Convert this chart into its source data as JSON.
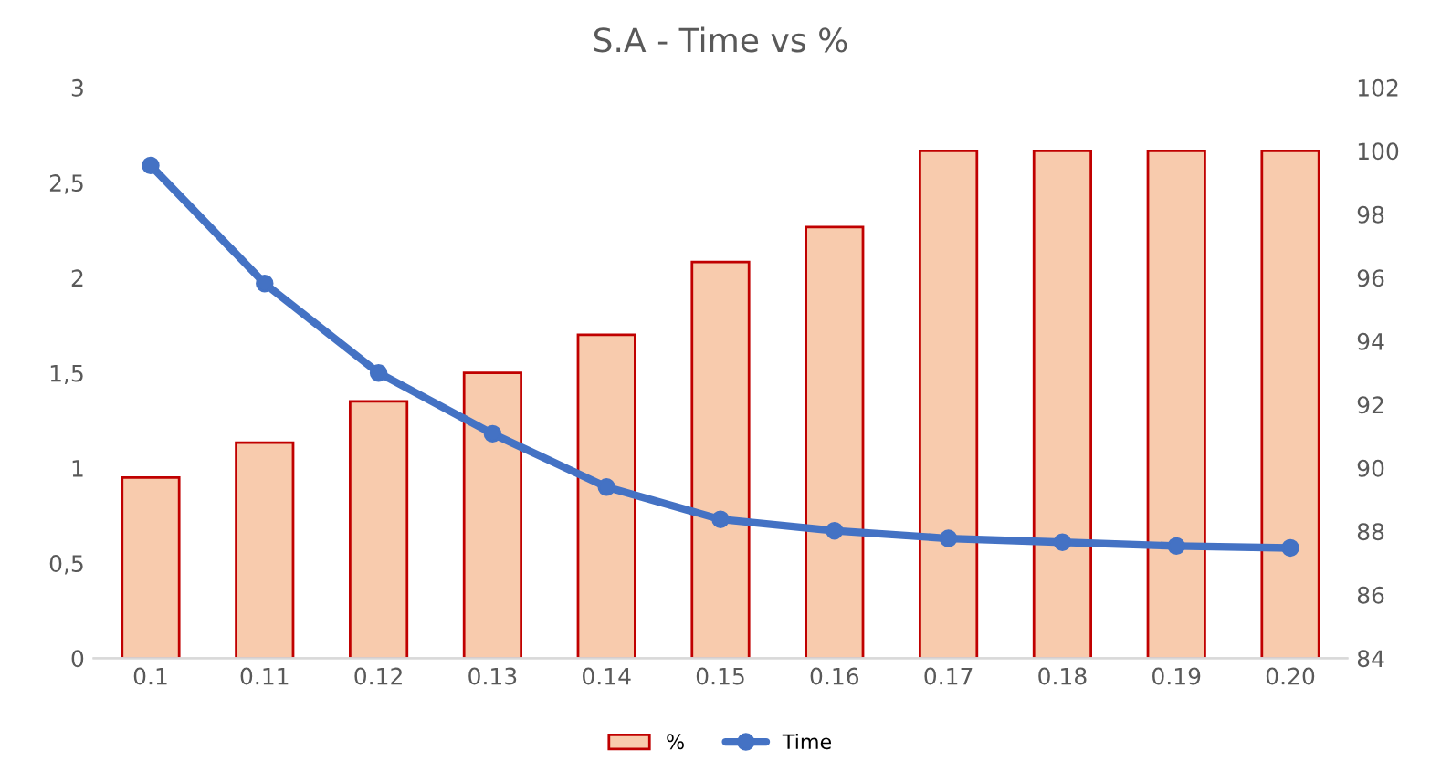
{
  "chart_data": {
    "type": "bar",
    "title": "S.A - Time vs %",
    "categories": [
      "0.1",
      "0.11",
      "0.12",
      "0.13",
      "0.14",
      "0.15",
      "0.16",
      "0.17",
      "0.18",
      "0.19",
      "0.20"
    ],
    "series": [
      {
        "name": "%",
        "axis": "y2",
        "color": "#f8cbad",
        "values": [
          89.7,
          90.8,
          92.1,
          93.0,
          94.2,
          96.5,
          97.6,
          100,
          100,
          100,
          100
        ]
      },
      {
        "name": "Time",
        "type": "line",
        "axis": "y",
        "color": "#4472c4",
        "marker": "circle",
        "values": [
          2.59,
          1.97,
          1.5,
          1.18,
          0.9,
          0.73,
          0.67,
          0.63,
          0.61,
          0.59,
          0.58
        ]
      }
    ],
    "ylim": [
      0,
      3
    ],
    "yticks": [
      0,
      {
        "value": 0.5,
        "label": "0,5"
      },
      1,
      {
        "value": 1.5,
        "label": "1,5"
      },
      2,
      {
        "value": 2.5,
        "label": "2,5"
      },
      3
    ],
    "y2lim": [
      84,
      102
    ],
    "y2ticks": [
      84,
      86,
      88,
      90,
      92,
      94,
      96,
      98,
      100,
      102
    ],
    "grid": false,
    "legend": "bottom"
  }
}
